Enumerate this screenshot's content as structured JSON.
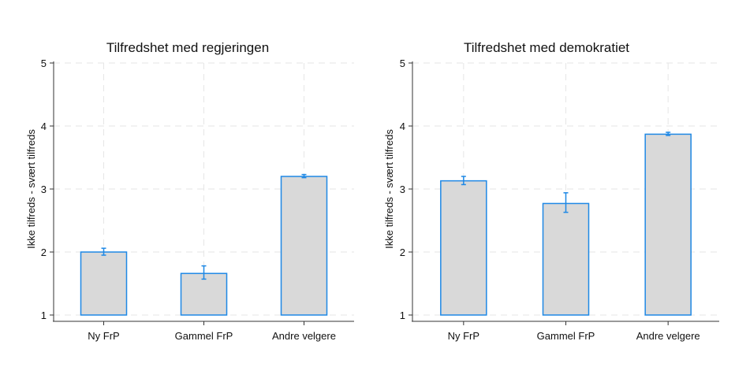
{
  "chart_data": [
    {
      "type": "bar",
      "title": "Tilfredshet med regjeringen",
      "xlabel": "",
      "ylabel": "Ikke tilfreds - svært tilfreds",
      "categories": [
        "Ny FrP",
        "Gammel FrP",
        "Andre velgere"
      ],
      "values": [
        2.0,
        1.66,
        3.2
      ],
      "error_low": [
        1.95,
        1.57,
        3.18
      ],
      "error_high": [
        2.06,
        1.78,
        3.23
      ],
      "ylim": [
        1,
        5
      ],
      "yticks": [
        "1",
        "2",
        "3",
        "4",
        "5"
      ],
      "grid": true,
      "colors": {
        "bar_fill": "#d9d9d9",
        "bar_edge": "#1e88e5",
        "error": "#1e88e5",
        "grid": "#e6e6e6",
        "axis": "#333333"
      }
    },
    {
      "type": "bar",
      "title": "Tilfredshet med demokratiet",
      "xlabel": "",
      "ylabel": "Ikke tilfreds - svært tilfreds",
      "categories": [
        "Ny FrP",
        "Gammel FrP",
        "Andre velgere"
      ],
      "values": [
        3.13,
        2.77,
        3.87
      ],
      "error_low": [
        3.07,
        2.63,
        3.85
      ],
      "error_high": [
        3.2,
        2.94,
        3.9
      ],
      "ylim": [
        1,
        5
      ],
      "yticks": [
        "1",
        "2",
        "3",
        "4",
        "5"
      ],
      "grid": true,
      "colors": {
        "bar_fill": "#d9d9d9",
        "bar_edge": "#1e88e5",
        "error": "#1e88e5",
        "grid": "#e6e6e6",
        "axis": "#333333"
      }
    }
  ]
}
